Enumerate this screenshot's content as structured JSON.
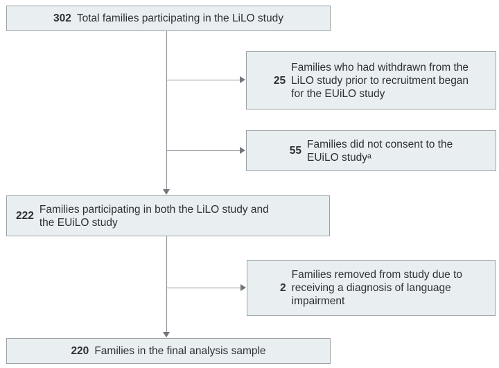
{
  "figure": {
    "type": "participant-flow-diagram",
    "colors": {
      "box_fill": "#e9eef1",
      "box_border": "#9ba1a6",
      "connector_line": "#8d9297",
      "arrowhead": "#71767a",
      "text": "#2e2f31",
      "background": "#ffffff"
    },
    "boxes": [
      {
        "id": "total",
        "number": "302",
        "text": "Total families participating in the LiLO study"
      },
      {
        "id": "withdrawn",
        "number": "25",
        "text": "Families who had withdrawn from the\nLiLO study prior to recruitment began\nfor the EUiLO study"
      },
      {
        "id": "no-consent",
        "number": "55",
        "text": "Families did not consent to the\nEUiLO studyᵃ"
      },
      {
        "id": "both",
        "number": "222",
        "text": "Families participating in both the LiLO study and\nthe EUiLO study"
      },
      {
        "id": "removed",
        "number": "2",
        "text": "Families removed from study due to\nreceiving a diagnosis of language\nimpairment"
      },
      {
        "id": "final",
        "number": "220",
        "text": "Families in the final analysis sample"
      }
    ]
  }
}
